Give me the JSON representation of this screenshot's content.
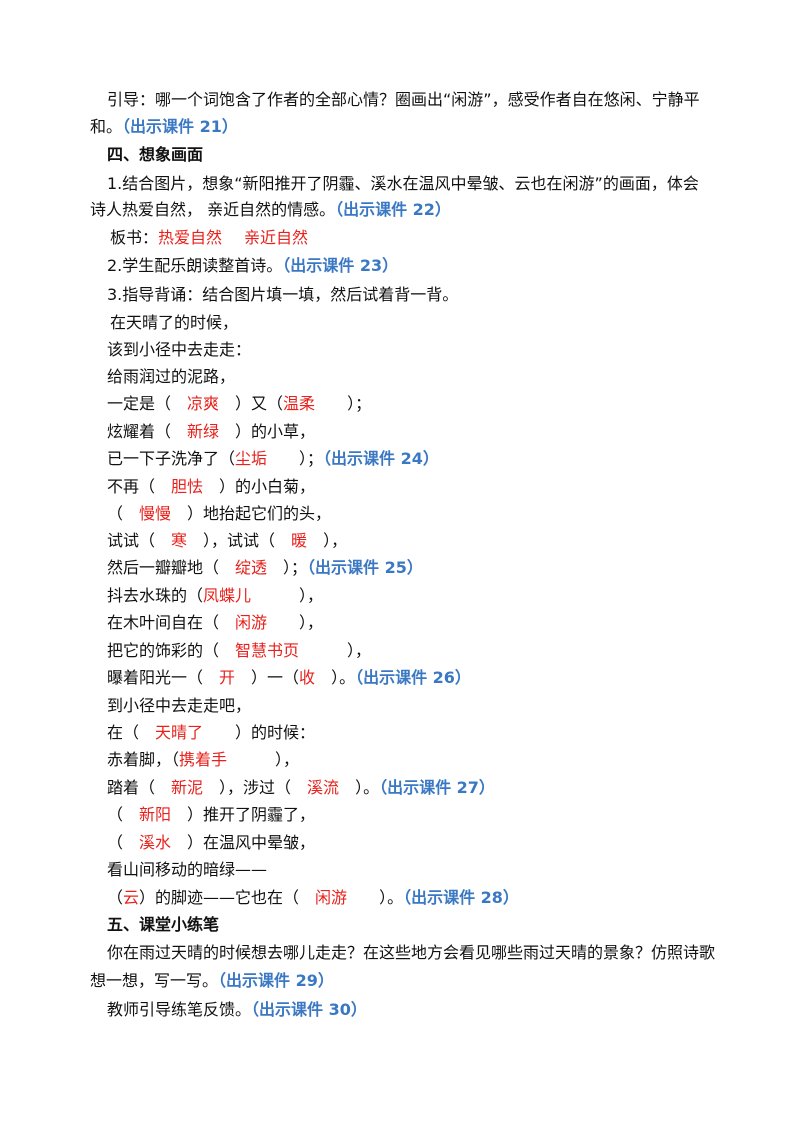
{
  "lines": [
    [
      "引导：哪一个词饱含了作者的全部心情？圈画出“闲游”，感受作者自在悠闲、宁静平"
    ],
    [
      "和。",
      "（出示课件 21）"
    ],
    [
      "四、想象画面"
    ],
    [
      "1.结合图片，想象“新阳推开了阴霾、溪水在温风中晕皱、云也在闲游”的画面，体会"
    ],
    [
      "诗人热爱自然， 亲近自然的情感。",
      "（出示课件 22）"
    ],
    [
      "板书：",
      "热爱自然",
      "亲近自然"
    ],
    [
      "2.学生配乐朗读整首诗。",
      "（出示课件 23）"
    ],
    [
      "3.指导背诵：结合图片填一填，然后试着背一背。"
    ],
    [
      "在天晴了的时候，"
    ],
    [
      "该到小径中去走走："
    ],
    [
      "给雨润过的泥路，"
    ],
    [
      "一定是（　",
      "凉爽",
      "　）又（",
      "温柔",
      "　　）；"
    ],
    [
      "炫耀着（　",
      "新绿",
      "　）的小草，"
    ],
    [
      "已一下子洗净了（",
      "尘垢",
      "　　）；",
      "（出示课件 24）"
    ],
    [
      "不再（　",
      "胆怯",
      "　）的小白菊，"
    ],
    [
      "（　",
      "慢慢",
      "　）地抬起它们的头，"
    ],
    [
      "试试（　",
      "寒",
      "　），试试（　",
      "暖",
      "　），"
    ],
    [
      "然后一瓣瓣地（　",
      "绽透",
      "　）；",
      "（出示课件 25）"
    ],
    [
      "抖去水珠的（",
      "凤蝶儿",
      "　　　），"
    ],
    [
      "在木叶间自在（　",
      "闲游",
      "　　），"
    ],
    [
      "把它的饰彩的（　",
      "智慧书页",
      "　　　），"
    ],
    [
      "曝着阳光一（　",
      "开",
      "　）一（",
      "收",
      "　）。",
      "（出示课件 26）"
    ],
    [
      "到小径中去走走吧，"
    ],
    [
      "在（　",
      "天晴了",
      "　　）的时候："
    ],
    [
      "赤着脚，（",
      "携着手",
      "　　　），"
    ],
    [
      "踏着（　",
      "新泥",
      "　），涉过（　",
      "溪流",
      "　）。",
      "（出示课件 27）"
    ],
    [
      "（　",
      "新阳",
      "　）推开了阴霾了，"
    ],
    [
      "（　",
      "溪水",
      "　）在温风中晕皱，"
    ],
    [
      "看山间移动的暗绿——"
    ],
    [
      "（",
      "云",
      "）的脚迹——它也在（　",
      "闲游",
      "　　）。",
      "（出示课件 28）"
    ],
    [
      "五、课堂小练笔"
    ],
    [
      "你在雨过天晴的时候想去哪儿走走？在这些地方会看见哪些雨过天晴的景象？仿照诗歌"
    ],
    [
      "想一想，写一写。",
      "（出示课件 29）"
    ],
    [
      "教师引导练笔反馈。",
      "（出示课件 30）"
    ]
  ]
}
